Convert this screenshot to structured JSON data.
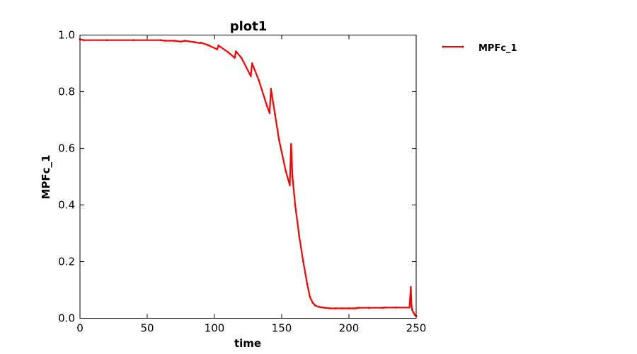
{
  "chart_data": {
    "type": "line",
    "title": "plot1",
    "xlabel": "time",
    "ylabel": "MPFc_1",
    "xlim": [
      0,
      250
    ],
    "ylim": [
      0,
      1
    ],
    "xticks": [
      0,
      50,
      100,
      150,
      200,
      250
    ],
    "yticks": [
      0.0,
      0.2,
      0.4,
      0.6,
      0.8,
      1.0
    ],
    "xtick_labels": [
      "0",
      "50",
      "100",
      "150",
      "200",
      "250"
    ],
    "ytick_labels": [
      "0.0",
      "0.2",
      "0.4",
      "0.6",
      "0.8",
      "1.0"
    ],
    "grid": false,
    "legend_position": "outside-top-right",
    "series": [
      {
        "name": "MPFc_1",
        "color": "#ff0000",
        "marker": "point",
        "x": [
          0,
          3,
          20,
          40,
          60,
          63,
          70,
          75,
          78,
          85,
          89,
          90,
          95,
          102,
          103,
          110,
          115,
          116,
          120,
          127,
          128,
          133,
          139,
          141,
          142,
          145,
          148,
          153,
          156,
          157,
          158,
          160,
          163,
          166,
          169,
          171,
          173,
          175,
          178,
          182,
          186,
          190,
          195,
          200,
          205,
          207,
          215,
          225,
          227,
          235,
          245,
          246,
          246.5,
          247,
          248,
          249,
          250
        ],
        "y": [
          0.985,
          0.982,
          0.982,
          0.982,
          0.982,
          0.98,
          0.98,
          0.977,
          0.98,
          0.975,
          0.972,
          0.973,
          0.965,
          0.95,
          0.963,
          0.94,
          0.92,
          0.942,
          0.92,
          0.855,
          0.9,
          0.84,
          0.75,
          0.725,
          0.81,
          0.72,
          0.63,
          0.52,
          0.47,
          0.615,
          0.5,
          0.4,
          0.29,
          0.2,
          0.12,
          0.075,
          0.055,
          0.045,
          0.04,
          0.037,
          0.035,
          0.035,
          0.035,
          0.035,
          0.035,
          0.037,
          0.037,
          0.037,
          0.038,
          0.038,
          0.038,
          0.11,
          0.045,
          0.03,
          0.02,
          0.012,
          0.008
        ]
      }
    ]
  }
}
